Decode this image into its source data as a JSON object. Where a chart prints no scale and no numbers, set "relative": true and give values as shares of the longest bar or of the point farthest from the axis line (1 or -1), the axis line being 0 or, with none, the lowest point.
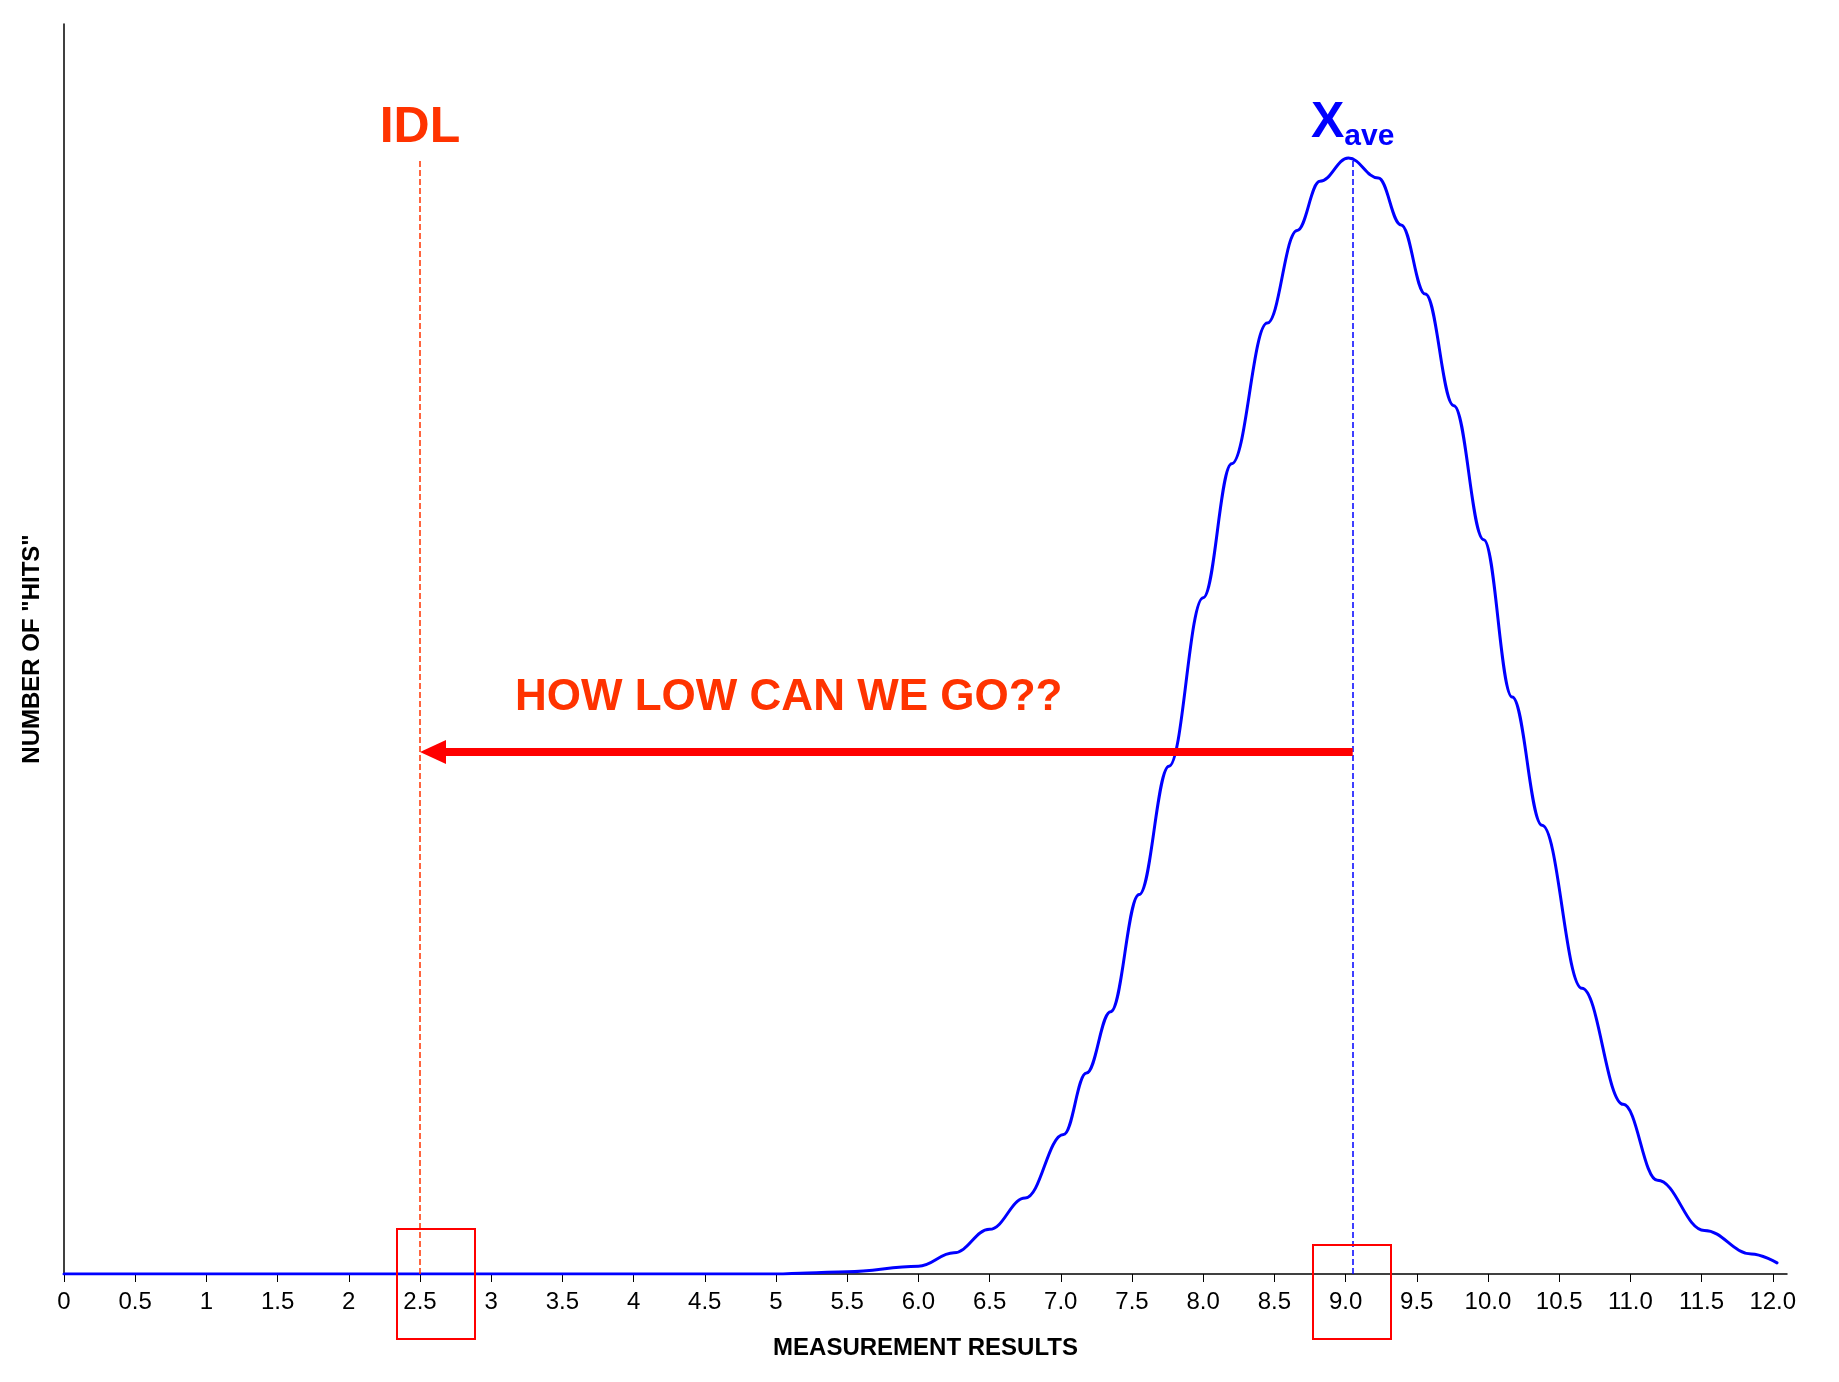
{
  "chart_data": {
    "type": "line",
    "relative": true,
    "xlabel": "MEASUREMENT RESULTS",
    "ylabel": "NUMBER OF \"HITS\"",
    "xlim": [
      0,
      12.1
    ],
    "xticks": [
      0,
      0.5,
      1,
      1.5,
      2,
      2.5,
      3,
      3.5,
      4,
      4.5,
      5,
      {
        "value": 5.5,
        "label": "5.5"
      },
      {
        "value": 6,
        "label": "6.0"
      },
      {
        "value": 6.5,
        "label": "6.5"
      },
      {
        "value": 7,
        "label": "7.0"
      },
      {
        "value": 7.5,
        "label": "7.5"
      },
      {
        "value": 8,
        "label": "8.0"
      },
      {
        "value": 8.5,
        "label": "8.5"
      },
      {
        "value": 9,
        "label": "9.0"
      },
      {
        "value": 9.5,
        "label": "9.5"
      },
      {
        "value": 10,
        "label": "10.0"
      },
      {
        "value": 10.5,
        "label": "10.5"
      },
      {
        "value": 11,
        "label": "11.0"
      },
      {
        "value": 11.5,
        "label": "11.5"
      },
      {
        "value": 12,
        "label": "12.0"
      }
    ],
    "grid": false,
    "series": [
      {
        "color": "#0000ff",
        "x": [
          0,
          1,
          2,
          3,
          4,
          5,
          5.22,
          5.5,
          6,
          6.25,
          6.5,
          6.75,
          7.02,
          7.18,
          7.35,
          7.55,
          7.76,
          8,
          8.2,
          8.45,
          8.66,
          8.82,
          9.02,
          9.23,
          9.39,
          9.56,
          9.76,
          9.97,
          10.17,
          10.38,
          10.66,
          10.95,
          11.19,
          11.52,
          11.85,
          12.03
        ],
        "values": [
          0,
          0,
          0,
          0,
          0,
          0,
          0.001,
          0.002,
          0.007,
          0.019,
          0.04,
          0.068,
          0.125,
          0.18,
          0.235,
          0.34,
          0.455,
          0.606,
          0.726,
          0.852,
          0.935,
          0.979,
          1,
          0.982,
          0.94,
          0.878,
          0.778,
          0.658,
          0.517,
          0.402,
          0.256,
          0.152,
          0.084,
          0.039,
          0.018,
          0.01
        ]
      }
    ],
    "ref_lines": [
      {
        "axis": "x",
        "value": 2.5,
        "label": "IDL",
        "color": "#ff3300",
        "line_style": "dashed"
      },
      {
        "axis": "x",
        "value": 9.05,
        "label": "X$_{ave}$",
        "color": "#0000ff",
        "line_style": "dashed"
      }
    ],
    "annotations": [
      "HOW LOW CAN WE GO??"
    ]
  }
}
